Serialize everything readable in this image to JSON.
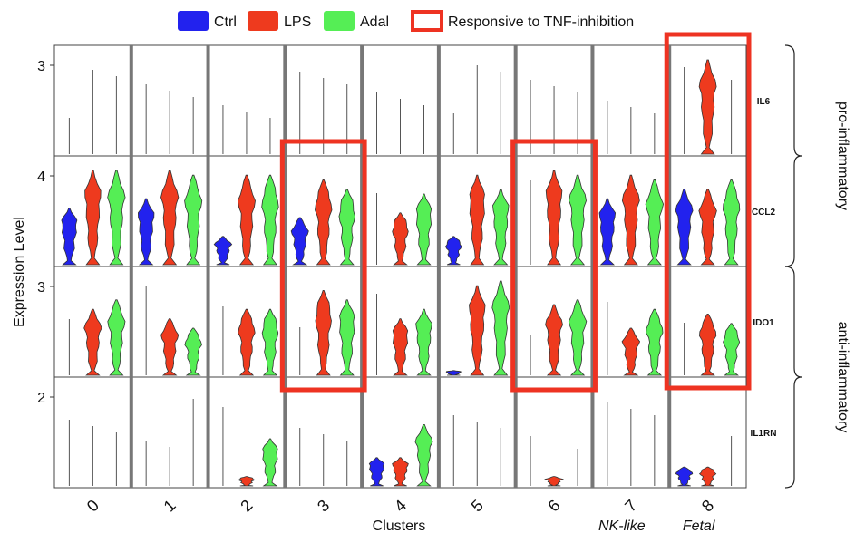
{
  "legend": {
    "items": [
      {
        "label": "Ctrl",
        "color": "#2222ee"
      },
      {
        "label": "LPS",
        "color": "#ee3a1e"
      },
      {
        "label": "Adal",
        "color": "#55ee55"
      }
    ],
    "box_label": "Responsive to TNF-inhibition",
    "box_color": "#ee3322"
  },
  "chart_data": {
    "type": "violin",
    "xlabel": "Clusters",
    "ylabel": "Expression Level",
    "clusters": [
      "0",
      "1",
      "2",
      "3",
      "4",
      "5",
      "6",
      "7",
      "8"
    ],
    "cluster_annotations": [
      {
        "cluster": "7",
        "label": "NK-like"
      },
      {
        "cluster": "8",
        "label": "Fetal"
      }
    ],
    "conditions": [
      "Ctrl",
      "LPS",
      "Adal"
    ],
    "genes": [
      {
        "name": "IL6",
        "y_tick": "3",
        "values": {
          "Ctrl": [
            0,
            0,
            0,
            0,
            0,
            0,
            0,
            0,
            0
          ],
          "LPS": [
            0,
            0,
            0,
            0,
            0,
            0,
            0,
            0,
            3.0
          ],
          "Adal": [
            0,
            0,
            0,
            0,
            0,
            0,
            0,
            0,
            0
          ]
        }
      },
      {
        "name": "CCL2",
        "y_tick": "4",
        "values": {
          "Ctrl": [
            0.6,
            0.7,
            0.3,
            0.5,
            0.0,
            0.3,
            0.0,
            0.7,
            0.8
          ],
          "LPS": [
            1.0,
            1.0,
            0.95,
            0.9,
            0.55,
            0.95,
            1.0,
            0.95,
            0.8
          ],
          "Adal": [
            1.0,
            0.95,
            0.95,
            0.8,
            0.75,
            0.8,
            0.95,
            0.9,
            0.9
          ]
        }
      },
      {
        "name": "IDO1",
        "y_tick": "3",
        "values": {
          "Ctrl": [
            0,
            0,
            0,
            0,
            0,
            0.05,
            0,
            0,
            0
          ],
          "LPS": [
            0.7,
            0.6,
            0.7,
            0.9,
            0.6,
            0.95,
            0.75,
            0.5,
            0.65
          ],
          "Adal": [
            0.8,
            0.5,
            0.7,
            0.8,
            0.7,
            1.0,
            0.8,
            0.7,
            0.55
          ]
        }
      },
      {
        "name": "IL1RN",
        "y_tick": "2",
        "values": {
          "Ctrl": [
            0,
            0,
            0,
            0,
            0.3,
            0,
            0,
            0,
            0.2
          ],
          "LPS": [
            0,
            0,
            0.1,
            0,
            0.3,
            0,
            0.1,
            0,
            0.2
          ],
          "Adal": [
            0,
            0,
            0.5,
            0,
            0.65,
            0,
            0,
            0,
            0
          ]
        }
      }
    ],
    "highlighted_clusters": [
      {
        "cluster": "3",
        "genes": [
          "CCL2",
          "IDO1"
        ]
      },
      {
        "cluster": "6",
        "genes": [
          "CCL2",
          "IDO1"
        ]
      },
      {
        "cluster": "8",
        "genes": [
          "IL6",
          "CCL2",
          "IDO1"
        ]
      }
    ],
    "gene_groups": [
      {
        "label": "pro-inflammatory",
        "genes": [
          "IL6",
          "CCL2"
        ]
      },
      {
        "label": "anti-inflammatory",
        "genes": [
          "IDO1",
          "IL1RN"
        ]
      }
    ]
  }
}
